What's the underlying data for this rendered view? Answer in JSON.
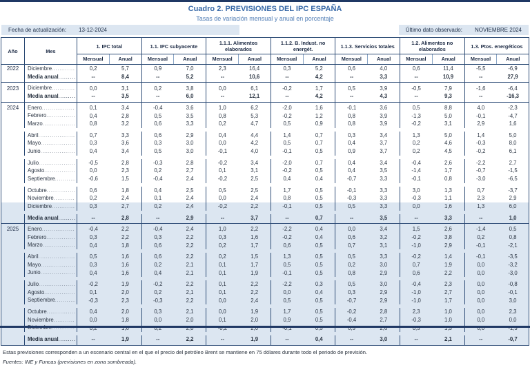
{
  "title": "Cuadro 2. PREVISIONES DEL IPC ESPAÑA",
  "subtitle": "Tasas de variación mensual y anual en porcentaje",
  "meta": {
    "update_label": "Fecha de actualización:",
    "update_value": "13-12-2024",
    "last_observed_label": "Último dato observado:",
    "last_observed_value": "NOVIEMBRE 2024"
  },
  "colors": {
    "accent_navy": "#1F3864",
    "title_blue": "#3567A6",
    "forecast_shade": "#DCE6F1",
    "border": "#2B4A74"
  },
  "table": {
    "corner_year": "Año",
    "corner_month": "Mes",
    "sub_monthly": "Mensual",
    "sub_annual": "Anual",
    "groups": [
      "1. IPC total",
      "1.1. IPC subyacente",
      "1.1.1. Alimentos elaborados",
      "1.1.2. B. Indust. no energét.",
      "1.1.3. Servicios totales",
      "1.2. Alimentos no elaborados",
      "1.3. Ptos. energéticos"
    ],
    "rows": [
      {
        "year": "2022",
        "label": "Diciembre",
        "media": false,
        "shaded": false,
        "sep": false,
        "gap": false,
        "values": [
          "0,2",
          "5,7",
          "0,9",
          "7,0",
          "2,3",
          "16,4",
          "0,3",
          "5,2",
          "0,6",
          "4,0",
          "0,6",
          "11,4",
          "-5,5",
          "-6,9"
        ]
      },
      {
        "year": "",
        "label": "Media anual",
        "media": true,
        "shaded": false,
        "sep": false,
        "gap": false,
        "values": [
          "--",
          "8,4",
          "--",
          "5,2",
          "--",
          "10,6",
          "--",
          "4,2",
          "--",
          "3,3",
          "--",
          "10,9",
          "--",
          "27,9"
        ]
      },
      {
        "year": "2023",
        "label": "Diciembre",
        "media": false,
        "shaded": false,
        "sep": true,
        "gap": false,
        "values": [
          "0,0",
          "3,1",
          "0,2",
          "3,8",
          "0,0",
          "6,1",
          "-0,2",
          "1,7",
          "0,5",
          "3,9",
          "-0,5",
          "7,9",
          "-1,6",
          "-6,4"
        ]
      },
      {
        "year": "",
        "label": "Media anual",
        "media": true,
        "shaded": false,
        "sep": false,
        "gap": false,
        "values": [
          "--",
          "3,5",
          "--",
          "6,0",
          "--",
          "12,1",
          "--",
          "4,2",
          "--",
          "4,3",
          "--",
          "9,3",
          "--",
          "-16,3"
        ]
      },
      {
        "year": "2024",
        "label": "Enero",
        "media": false,
        "shaded": false,
        "sep": true,
        "gap": false,
        "values": [
          "0,1",
          "3,4",
          "-0,4",
          "3,6",
          "1,0",
          "6,2",
          "-2,0",
          "1,6",
          "-0,1",
          "3,6",
          "0,5",
          "8,8",
          "4,0",
          "-2,3"
        ]
      },
      {
        "year": "",
        "label": "Febrero",
        "media": false,
        "shaded": false,
        "sep": false,
        "gap": false,
        "values": [
          "0,4",
          "2,8",
          "0,5",
          "3,5",
          "0,8",
          "5,3",
          "-0,2",
          "1,2",
          "0,8",
          "3,9",
          "-1,3",
          "5,0",
          "-0,1",
          "-4,7"
        ]
      },
      {
        "year": "",
        "label": "Marzo",
        "media": false,
        "shaded": false,
        "sep": false,
        "gap": false,
        "values": [
          "0,8",
          "3,2",
          "0,6",
          "3,3",
          "0,2",
          "4,7",
          "0,5",
          "0,9",
          "0,8",
          "3,9",
          "-0,2",
          "3,1",
          "2,9",
          "1,6"
        ]
      },
      {
        "year": "",
        "label": "Abril",
        "media": false,
        "shaded": false,
        "sep": false,
        "gap": true,
        "values": [
          "0,7",
          "3,3",
          "0,6",
          "2,9",
          "0,4",
          "4,4",
          "1,4",
          "0,7",
          "0,3",
          "3,4",
          "1,3",
          "5,0",
          "1,4",
          "5,0"
        ]
      },
      {
        "year": "",
        "label": "Mayo",
        "media": false,
        "shaded": false,
        "sep": false,
        "gap": false,
        "values": [
          "0,3",
          "3,6",
          "0,3",
          "3,0",
          "0,0",
          "4,2",
          "0,5",
          "0,7",
          "0,4",
          "3,7",
          "0,2",
          "4,6",
          "-0,3",
          "8,0"
        ]
      },
      {
        "year": "",
        "label": "Junio",
        "media": false,
        "shaded": false,
        "sep": false,
        "gap": false,
        "values": [
          "0,4",
          "3,4",
          "0,5",
          "3,0",
          "-0,1",
          "4,0",
          "-0,1",
          "0,5",
          "0,9",
          "3,7",
          "0,2",
          "4,5",
          "-0,2",
          "6,1"
        ]
      },
      {
        "year": "",
        "label": "Julio",
        "media": false,
        "shaded": false,
        "sep": false,
        "gap": true,
        "values": [
          "-0,5",
          "2,8",
          "-0,3",
          "2,8",
          "-0,2",
          "3,4",
          "-2,0",
          "0,7",
          "0,4",
          "3,4",
          "-0,4",
          "2,6",
          "-2,2",
          "2,7"
        ]
      },
      {
        "year": "",
        "label": "Agosto",
        "media": false,
        "shaded": false,
        "sep": false,
        "gap": false,
        "values": [
          "0,0",
          "2,3",
          "0,2",
          "2,7",
          "0,1",
          "3,1",
          "-0,2",
          "0,5",
          "0,4",
          "3,5",
          "-1,4",
          "1,7",
          "-0,7",
          "-1,5"
        ]
      },
      {
        "year": "",
        "label": "Septiembre",
        "media": false,
        "shaded": false,
        "sep": false,
        "gap": false,
        "values": [
          "-0,6",
          "1,5",
          "-0,4",
          "2,4",
          "-0,2",
          "2,5",
          "0,4",
          "0,4",
          "-0,7",
          "3,3",
          "-0,1",
          "0,8",
          "-3,0",
          "-6,5"
        ]
      },
      {
        "year": "",
        "label": "Octubre",
        "media": false,
        "shaded": false,
        "sep": false,
        "gap": true,
        "values": [
          "0,6",
          "1,8",
          "0,4",
          "2,5",
          "0,5",
          "2,5",
          "1,7",
          "0,5",
          "-0,1",
          "3,3",
          "3,0",
          "1,3",
          "0,7",
          "-3,7"
        ]
      },
      {
        "year": "",
        "label": "Noviembre",
        "media": false,
        "shaded": false,
        "sep": false,
        "gap": false,
        "values": [
          "0,2",
          "2,4",
          "0,1",
          "2,4",
          "0,0",
          "2,4",
          "0,8",
          "0,5",
          "-0,3",
          "3,3",
          "-0,3",
          "1,1",
          "2,3",
          "2,9"
        ]
      },
      {
        "year": "",
        "label": "Diciembre",
        "media": false,
        "shaded": true,
        "sep": false,
        "gap": false,
        "values": [
          "0,3",
          "2,7",
          "0,2",
          "2,4",
          "-0,2",
          "2,2",
          "-0,1",
          "0,5",
          "0,5",
          "3,3",
          "0,0",
          "1,6",
          "1,3",
          "6,0"
        ]
      },
      {
        "year": "",
        "label": "Media anual",
        "media": true,
        "shaded": true,
        "sep": false,
        "gap": true,
        "values": [
          "--",
          "2,8",
          "--",
          "2,9",
          "--",
          "3,7",
          "--",
          "0,7",
          "--",
          "3,5",
          "--",
          "3,3",
          "--",
          "1,0"
        ]
      },
      {
        "year": "2025",
        "label": "Enero",
        "media": false,
        "shaded": true,
        "sep": true,
        "gap": false,
        "values": [
          "-0,4",
          "2,2",
          "-0,4",
          "2,4",
          "1,0",
          "2,2",
          "-2,2",
          "0,4",
          "0,0",
          "3,4",
          "1,5",
          "2,6",
          "-1,4",
          "0,5"
        ]
      },
      {
        "year": "",
        "label": "Febrero",
        "media": false,
        "shaded": true,
        "sep": false,
        "gap": false,
        "values": [
          "0,3",
          "2,2",
          "0,3",
          "2,2",
          "0,3",
          "1,6",
          "-0,2",
          "0,4",
          "0,6",
          "3,2",
          "-0,2",
          "3,8",
          "0,2",
          "0,8"
        ]
      },
      {
        "year": "",
        "label": "Marzo",
        "media": false,
        "shaded": true,
        "sep": false,
        "gap": false,
        "values": [
          "0,4",
          "1,8",
          "0,6",
          "2,2",
          "0,2",
          "1,7",
          "0,6",
          "0,5",
          "0,7",
          "3,1",
          "-1,0",
          "2,9",
          "-0,1",
          "-2,1"
        ]
      },
      {
        "year": "",
        "label": "Abril",
        "media": false,
        "shaded": true,
        "sep": false,
        "gap": true,
        "values": [
          "0,5",
          "1,6",
          "0,6",
          "2,2",
          "0,2",
          "1,5",
          "1,3",
          "0,5",
          "0,5",
          "3,3",
          "-0,2",
          "1,4",
          "-0,1",
          "-3,5"
        ]
      },
      {
        "year": "",
        "label": "Mayo",
        "media": false,
        "shaded": true,
        "sep": false,
        "gap": false,
        "values": [
          "0,3",
          "1,6",
          "0,2",
          "2,1",
          "0,1",
          "1,7",
          "0,5",
          "0,5",
          "0,2",
          "3,0",
          "0,7",
          "1,9",
          "0,0",
          "-3,2"
        ]
      },
      {
        "year": "",
        "label": "Junio",
        "media": false,
        "shaded": true,
        "sep": false,
        "gap": false,
        "values": [
          "0,4",
          "1,6",
          "0,4",
          "2,1",
          "0,1",
          "1,9",
          "-0,1",
          "0,5",
          "0,8",
          "2,9",
          "0,6",
          "2,2",
          "0,0",
          "-3,0"
        ]
      },
      {
        "year": "",
        "label": "Julio",
        "media": false,
        "shaded": true,
        "sep": false,
        "gap": true,
        "values": [
          "-0,2",
          "1,9",
          "-0,2",
          "2,2",
          "0,1",
          "2,2",
          "-2,2",
          "0,3",
          "0,5",
          "3,0",
          "-0,4",
          "2,3",
          "0,0",
          "-0,8"
        ]
      },
      {
        "year": "",
        "label": "Agosto",
        "media": false,
        "shaded": true,
        "sep": false,
        "gap": false,
        "values": [
          "0,1",
          "2,0",
          "0,2",
          "2,1",
          "0,1",
          "2,2",
          "0,0",
          "0,4",
          "0,3",
          "2,9",
          "-1,0",
          "2,7",
          "0,0",
          "-0,1"
        ]
      },
      {
        "year": "",
        "label": "Septiembre",
        "media": false,
        "shaded": true,
        "sep": false,
        "gap": false,
        "values": [
          "-0,3",
          "2,3",
          "-0,3",
          "2,2",
          "0,0",
          "2,4",
          "0,5",
          "0,5",
          "-0,7",
          "2,9",
          "-1,0",
          "1,7",
          "0,0",
          "3,0"
        ]
      },
      {
        "year": "",
        "label": "Octubre",
        "media": false,
        "shaded": true,
        "sep": false,
        "gap": true,
        "values": [
          "0,4",
          "2,0",
          "0,3",
          "2,1",
          "0,0",
          "1,9",
          "1,7",
          "0,5",
          "-0,2",
          "2,8",
          "2,3",
          "1,0",
          "0,0",
          "2,3"
        ]
      },
      {
        "year": "",
        "label": "Noviembre",
        "media": false,
        "shaded": true,
        "sep": false,
        "gap": false,
        "values": [
          "0,0",
          "1,8",
          "0,0",
          "2,0",
          "0,1",
          "2,0",
          "0,9",
          "0,5",
          "-0,4",
          "2,7",
          "-0,3",
          "1,0",
          "0,0",
          "0,0"
        ]
      },
      {
        "year": "",
        "label": "Diciembre",
        "media": false,
        "shaded": true,
        "sep": false,
        "gap": false,
        "values": [
          "0,2",
          "1,6",
          "0,2",
          "2,0",
          "-0,2",
          "2,0",
          "-0,1",
          "0,5",
          "0,5",
          "2,6",
          "0,3",
          "1,3",
          "0,0",
          "-1,3"
        ]
      },
      {
        "year": "",
        "label": "Media anual",
        "media": true,
        "shaded": true,
        "sep": false,
        "gap": true,
        "values": [
          "--",
          "1,9",
          "--",
          "2,2",
          "--",
          "1,9",
          "--",
          "0,4",
          "--",
          "3,0",
          "--",
          "2,1",
          "--",
          "-0,7"
        ]
      }
    ]
  },
  "notes": {
    "scenario": "Estas previsiones corresponden a un escenario central en el que el precio del petróleo Brent se mantiene en 75 dólares durante todo el periodo de previsión.",
    "sources": "Fuentes: INE y Funcas (previsiones en zona sombreada)."
  }
}
